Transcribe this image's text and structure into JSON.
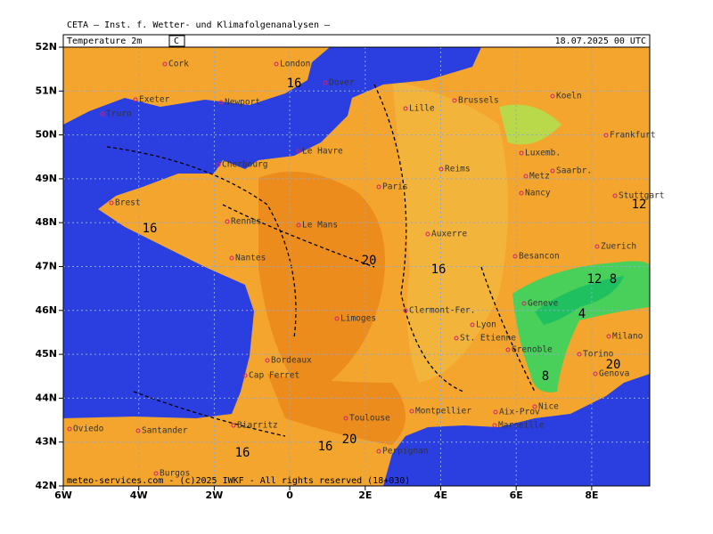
{
  "header": "CETA — Inst. f. Wetter- und Klimafolgenanalysen —",
  "panel": {
    "title": "Temperature 2m",
    "unit": "C",
    "valid": "18.07.2025 00 UTC"
  },
  "lat_ticks": [
    {
      "value": 52,
      "label": "52N"
    },
    {
      "value": 51,
      "label": "51N"
    },
    {
      "value": 50,
      "label": "50N"
    },
    {
      "value": 49,
      "label": "49N"
    },
    {
      "value": 48,
      "label": "48N"
    },
    {
      "value": 47,
      "label": "47N"
    },
    {
      "value": 46,
      "label": "46N"
    },
    {
      "value": 45,
      "label": "45N"
    },
    {
      "value": 44,
      "label": "44N"
    },
    {
      "value": 43,
      "label": "43N"
    },
    {
      "value": 42,
      "label": "42N"
    }
  ],
  "lon_ticks": [
    {
      "value": -6,
      "label": "6W"
    },
    {
      "value": -4,
      "label": "4W"
    },
    {
      "value": -2,
      "label": "2W"
    },
    {
      "value": 0,
      "label": "0"
    },
    {
      "value": 2,
      "label": "2E"
    },
    {
      "value": 4,
      "label": "4E"
    },
    {
      "value": 6,
      "label": "6E"
    },
    {
      "value": 8,
      "label": "8E"
    }
  ],
  "cities": [
    "Cork",
    "London",
    "Dover",
    "Exeter",
    "Newport",
    "Truro",
    "Lille",
    "Brussels",
    "Koeln",
    "Frankfurt",
    "Luxemb.",
    "Le Havre",
    "Cherbourg",
    "Reims",
    "Metz",
    "Saarbr.",
    "Paris",
    "Nancy",
    "Stuttgart",
    "Brest",
    "Rennes",
    "Le Mans",
    "Auxerre",
    "Zuerich",
    "Nantes",
    "Besancon",
    "Geneve",
    "Clermont-Fer.",
    "Limoges",
    "Lyon",
    "St. Etienne",
    "Milano",
    "Grenoble",
    "Torino",
    "Bordeaux",
    "Genova",
    "Cap Ferret",
    "Nice",
    "Montpellier",
    "Aix-Prov",
    "Toulouse",
    "Marseille",
    "Biarritz",
    "Oviedo",
    "Santander",
    "Perpignan",
    "Burgos"
  ],
  "contour_labels": [
    "16",
    "16",
    "20",
    "16",
    "12",
    "12",
    "8",
    "4",
    "20",
    "8",
    "20",
    "16",
    "16"
  ],
  "copyright": "meteo-services.com - (c)2025 IWKF - All rights reserved (18+030)"
}
